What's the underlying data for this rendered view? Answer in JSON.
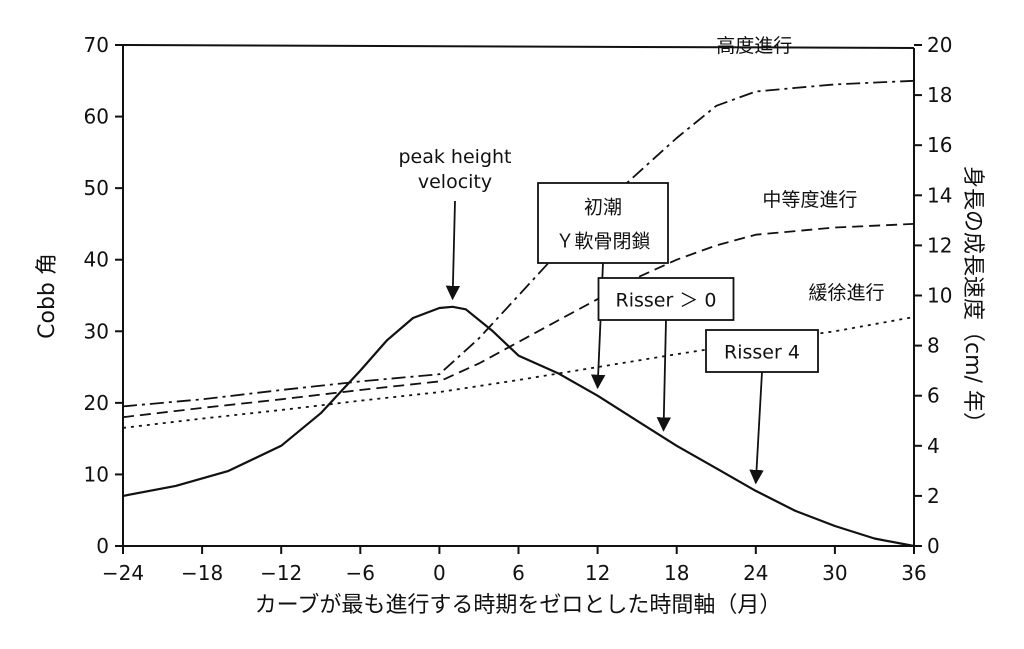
{
  "chart_data": {
    "type": "line",
    "title": "",
    "xlabel": "カーブが最も進行する時期をゼロとした時間軸（月）",
    "ylabel_left": "Cobb 角",
    "ylabel_right": "身長の成長速度（cm/ 年）",
    "x_ticks": [
      -24,
      -18,
      -12,
      -6,
      0,
      6,
      12,
      18,
      24,
      30,
      36
    ],
    "y_left_ticks": [
      0,
      10,
      20,
      30,
      40,
      50,
      60,
      70
    ],
    "y_right_ticks": [
      0,
      2,
      4,
      6,
      8,
      10,
      12,
      14,
      16,
      18,
      20
    ],
    "xlim": [
      -24,
      36
    ],
    "ylim_left": [
      0,
      70
    ],
    "ylim_right": [
      0,
      20
    ],
    "grid": false,
    "series": [
      {
        "name": "高度進行",
        "axis": "left",
        "style": "dash-dot",
        "x": [
          -24,
          -18,
          -12,
          -6,
          0,
          3,
          6,
          9,
          12,
          15,
          18,
          21,
          24,
          27,
          30,
          36
        ],
        "y": [
          19.5,
          20.5,
          21.8,
          23,
          24,
          29,
          35,
          41,
          47,
          52,
          57,
          61.5,
          63.5,
          64,
          64.5,
          65
        ]
      },
      {
        "name": "中等度進行",
        "axis": "left",
        "style": "dashed",
        "x": [
          -24,
          -18,
          -12,
          -6,
          0,
          3,
          6,
          9,
          12,
          15,
          18,
          21,
          24,
          27,
          30,
          36
        ],
        "y": [
          18,
          19.3,
          20.5,
          21.8,
          23,
          25.5,
          28.5,
          31.5,
          34.5,
          37.5,
          40,
          42,
          43.5,
          44,
          44.5,
          45
        ]
      },
      {
        "name": "緩徐進行",
        "axis": "left",
        "style": "dotted",
        "x": [
          -24,
          -18,
          -12,
          -6,
          0,
          6,
          12,
          18,
          24,
          30,
          36
        ],
        "y": [
          16.5,
          17.8,
          19,
          20.3,
          21.5,
          23.2,
          25,
          26.8,
          28.5,
          30,
          32
        ]
      },
      {
        "name": "身長の成長速度",
        "axis": "right",
        "style": "solid",
        "x": [
          -24,
          -20,
          -16,
          -12,
          -9,
          -6,
          -4,
          -2,
          0,
          1,
          2,
          4,
          6,
          9,
          12,
          15,
          18,
          21,
          24,
          27,
          30,
          33,
          36
        ],
        "y": [
          2,
          2.4,
          3,
          4,
          5.3,
          7,
          8.2,
          9.1,
          9.5,
          9.55,
          9.45,
          8.6,
          7.6,
          6.9,
          6,
          5,
          4,
          3.1,
          2.2,
          1.4,
          0.8,
          0.3,
          0
        ]
      }
    ],
    "annotations": [
      {
        "text": [
          "peak height",
          "velocity"
        ],
        "boxed": false,
        "x": 1,
        "y_right": 9.55
      },
      {
        "text": [
          "初潮",
          "Ｙ軟骨閉鎖"
        ],
        "boxed": true,
        "x": 12,
        "y_right": 6
      },
      {
        "text": [
          "Risser ＞ 0"
        ],
        "boxed": true,
        "x": 17,
        "y_right": 4.3
      },
      {
        "text": [
          "Risser 4"
        ],
        "boxed": true,
        "x": 24,
        "y_right": 2.2
      }
    ]
  }
}
